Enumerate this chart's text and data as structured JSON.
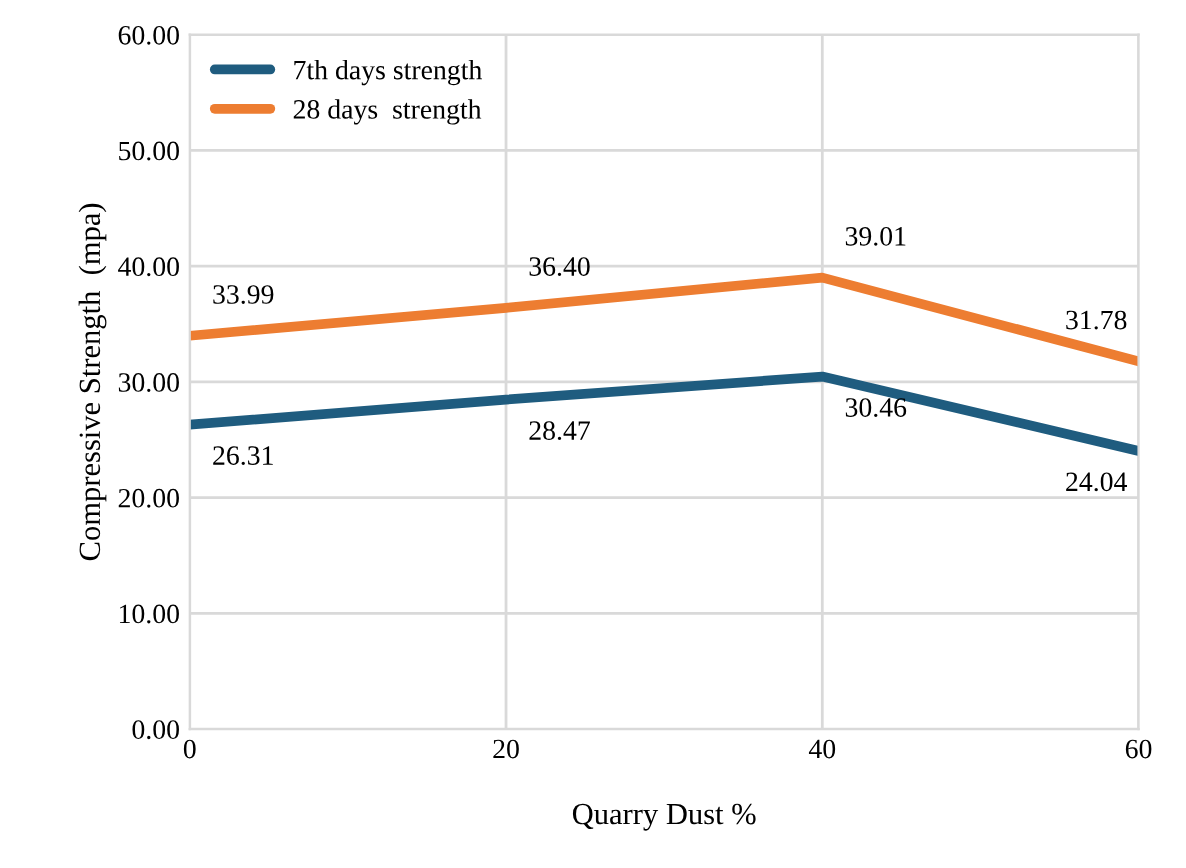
{
  "chart_data": {
    "type": "line",
    "xlabel": "Quarry Dust %",
    "ylabel": "Compressive Strength  (mpa)",
    "x": [
      0,
      20,
      40,
      60
    ],
    "series": [
      {
        "name": "7th days strength",
        "color": "#1f5c7f",
        "values": [
          26.31,
          28.47,
          30.46,
          24.04
        ],
        "value_labels": [
          "26.31",
          "28.47",
          "30.46",
          "24.04"
        ]
      },
      {
        "name": "28 days  strength",
        "color": "#ed7d31",
        "values": [
          33.99,
          36.4,
          39.01,
          31.78
        ],
        "value_labels": [
          "33.99",
          "36.40",
          "39.01",
          "31.78"
        ]
      }
    ],
    "xlim": [
      0,
      60
    ],
    "xticks": [
      0,
      20,
      40,
      60
    ],
    "ylim": [
      0,
      60
    ],
    "yticks": [
      {
        "value": 0,
        "label": "0.00"
      },
      {
        "value": 10,
        "label": "10.00"
      },
      {
        "value": 20,
        "label": "20.00"
      },
      {
        "value": 30,
        "label": "30.00"
      },
      {
        "value": 40,
        "label": "40.00"
      },
      {
        "value": 50,
        "label": "50.00"
      },
      {
        "value": 60,
        "label": "60.00"
      }
    ],
    "grid": true,
    "legend": "top left",
    "marker": "none",
    "line_style": "solid"
  }
}
